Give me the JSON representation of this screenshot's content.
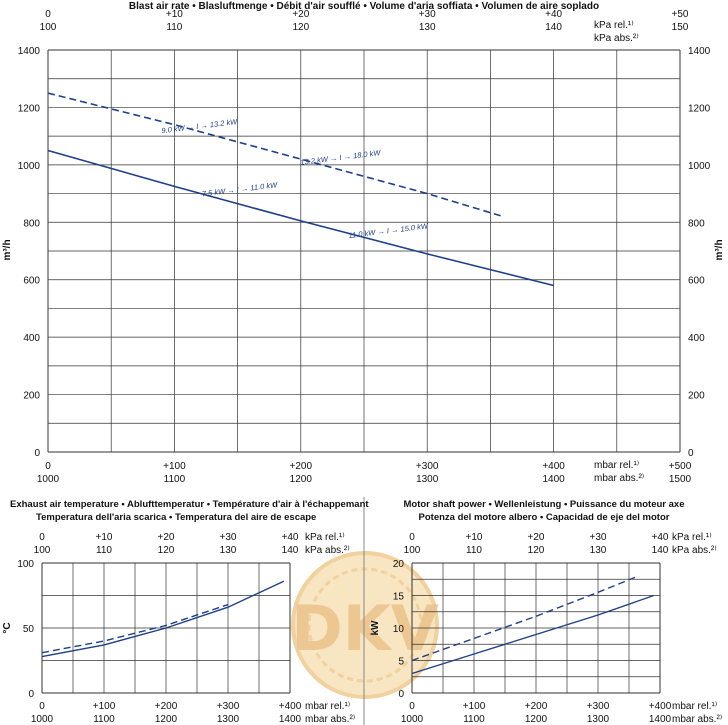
{
  "top": {
    "title": "Blast air rate  •  Blasluftmenge  •  Débit d'air soufflé  •  Volume d'aria soffiata  •  Volumen de aire soplado",
    "ylabel": "m³/h",
    "kpa_rel_label": "kPa rel.¹⁾",
    "kpa_abs_label": "kPa abs.²⁾",
    "mbar_rel_label": "mbar rel.¹⁾",
    "mbar_abs_label": "mbar abs.²⁾"
  },
  "exhaust": {
    "title1": "Exhaust air temperature  •  Ablufttemperatur  •  Température d'air à l'échappemant",
    "title2": "Temperatura dell'aria scarica  •  Temperatura del aire de escape",
    "ylabel": "°C",
    "kpa_rel_label": "kPa rel.¹⁾",
    "kpa_abs_label": "kPa abs.²⁾",
    "mbar_rel_label": "mbar rel.¹⁾",
    "mbar_abs_label": "mbar abs.²⁾"
  },
  "power": {
    "title1": "Motor shaft power  •  Wellenleistung  •  Puissance du moteur axe",
    "title2": "Potenza del motore albero  •  Capacidad de eje del motor",
    "ylabel": "kW",
    "kpa_rel_label": "kPa rel.¹⁾",
    "kpa_abs_label": "kPa abs.²⁾",
    "mbar_rel_label": "mbar rel.¹⁾",
    "mbar_abs_label": "mbar abs.²⁾"
  },
  "watermark": "DKV",
  "colors": {
    "line": "#1f3f8a",
    "grid": "#333333",
    "watermark": "#f0c47a"
  },
  "chart_data": [
    {
      "type": "line",
      "title": "Blast air rate  •  Blasluftmenge  •  Débit d'air soufflé  •  Volume d'aria soffiata  •  Volumen de aire soplado",
      "xlabel": "mbar rel.¹⁾",
      "ylabel": "m³/h",
      "xlim": [
        0,
        500
      ],
      "ylim": [
        0,
        1400
      ],
      "x_ticks": [
        "0",
        "+100",
        "+200",
        "+300",
        "+400",
        "+500"
      ],
      "x_ticks_abs": [
        "1000",
        "1100",
        "1200",
        "1300",
        "1400",
        "1500"
      ],
      "top_ticks_rel": [
        "0",
        "+10",
        "+20",
        "+30",
        "+40",
        "+50"
      ],
      "top_ticks_abs": [
        "100",
        "110",
        "120",
        "130",
        "140",
        "150"
      ],
      "y_ticks": [
        "0",
        "200",
        "400",
        "600",
        "800",
        "1000",
        "1200",
        "1400"
      ],
      "grid": true,
      "series": [
        {
          "style": "dashed",
          "x": [
            0,
            100,
            200,
            300,
            360
          ],
          "y": [
            1250,
            1140,
            1020,
            900,
            820
          ]
        },
        {
          "style": "solid",
          "x": [
            0,
            100,
            200,
            300,
            400
          ],
          "y": [
            1050,
            925,
            805,
            690,
            580
          ]
        }
      ],
      "annotations": [
        {
          "text": "9.0 kW → I → 13.2 kW",
          "x": 90,
          "y": 1110,
          "angle": -7
        },
        {
          "text": "13.2 kW → I → 18.0 kW",
          "x": 200,
          "y": 1000,
          "angle": -7
        },
        {
          "text": "7.5 kW → I → 11.0 kW",
          "x": 122,
          "y": 890,
          "angle": -7
        },
        {
          "text": "11.0 kW → I → 15.0 kW",
          "x": 238,
          "y": 745,
          "angle": -7
        }
      ]
    },
    {
      "type": "line",
      "title": "Exhaust air temperature  •  Ablufttemperatur  •  Température d'air à l'échappemant",
      "xlabel": "mbar rel.¹⁾",
      "ylabel": "°C",
      "xlim": [
        0,
        400
      ],
      "ylim": [
        0,
        100
      ],
      "x_ticks": [
        "0",
        "+100",
        "+200",
        "+300",
        "+400"
      ],
      "x_ticks_abs": [
        "1000",
        "1100",
        "1200",
        "1300",
        "1400"
      ],
      "top_ticks_rel": [
        "0",
        "+10",
        "+20",
        "+30",
        "+40"
      ],
      "top_ticks_abs": [
        "100",
        "110",
        "120",
        "130",
        "140"
      ],
      "y_ticks": [
        "0",
        "50",
        "100"
      ],
      "grid": true,
      "series": [
        {
          "style": "dashed",
          "x": [
            0,
            100,
            200,
            300
          ],
          "y": [
            31,
            40,
            52,
            68
          ]
        },
        {
          "style": "solid",
          "x": [
            0,
            100,
            200,
            300,
            390
          ],
          "y": [
            28,
            37,
            50,
            66,
            86
          ]
        }
      ]
    },
    {
      "type": "line",
      "title": "Motor shaft power  •  Wellenleistung  •  Puissance du moteur axe",
      "xlabel": "mbar rel.¹⁾",
      "ylabel": "kW",
      "xlim": [
        0,
        400
      ],
      "ylim": [
        0,
        20
      ],
      "x_ticks": [
        "0",
        "+100",
        "+200",
        "+300",
        "+400"
      ],
      "x_ticks_abs": [
        "1000",
        "1100",
        "1200",
        "1300",
        "1400"
      ],
      "top_ticks_rel": [
        "0",
        "+10",
        "+20",
        "+30",
        "+40"
      ],
      "top_ticks_abs": [
        "100",
        "110",
        "120",
        "130",
        "140"
      ],
      "y_ticks": [
        "0",
        "5",
        "10",
        "15",
        "20"
      ],
      "grid": true,
      "series": [
        {
          "style": "dashed",
          "x": [
            0,
            100,
            200,
            300,
            360
          ],
          "y": [
            5,
            8.4,
            11.8,
            15.5,
            17.8
          ]
        },
        {
          "style": "solid",
          "x": [
            0,
            100,
            200,
            300,
            390
          ],
          "y": [
            3,
            6,
            9,
            12,
            15
          ]
        }
      ]
    }
  ]
}
